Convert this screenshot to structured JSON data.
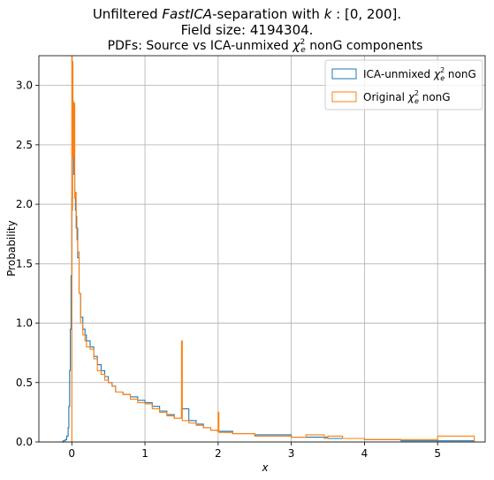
{
  "figure": {
    "suptitle_line1_a": "Unfiltered ",
    "suptitle_line1_b": "FastICA",
    "suptitle_line1_c": "-separation with ",
    "suptitle_line1_d": "k",
    "suptitle_line1_e": " : [0, 200].",
    "suptitle_line2": "Field size: 4194304."
  },
  "chart_data": {
    "type": "line",
    "title_a": "PDFs: Source vs ICA-unmixed ",
    "title_chi": "χ",
    "title_sup": "2",
    "title_sub": "e",
    "title_b": " nonG components",
    "xlabel": "x",
    "ylabel": "Probability",
    "xlim": [
      -0.45,
      5.65
    ],
    "ylim": [
      0,
      3.25
    ],
    "xticks": [
      0,
      1,
      2,
      3,
      4,
      5
    ],
    "yticks": [
      0.0,
      0.5,
      1.0,
      1.5,
      2.0,
      2.5,
      3.0
    ],
    "grid": true,
    "legend_position": "top-right",
    "series": [
      {
        "name_a": "ICA-unmixed ",
        "name_b": " nonG",
        "color": "#1f77b4",
        "style": "step",
        "x": [
          -0.15,
          -0.12,
          -0.09,
          -0.07,
          -0.05,
          -0.04,
          -0.03,
          -0.02,
          -0.01,
          0.0,
          0.01,
          0.02,
          0.03,
          0.04,
          0.05,
          0.06,
          0.08,
          0.1,
          0.12,
          0.15,
          0.18,
          0.2,
          0.25,
          0.3,
          0.35,
          0.4,
          0.45,
          0.5,
          0.55,
          0.6,
          0.7,
          0.8,
          0.9,
          1.0,
          1.1,
          1.2,
          1.3,
          1.4,
          1.5,
          1.6,
          1.7,
          1.8,
          1.9,
          2.0,
          2.2,
          2.5,
          3.0,
          3.5,
          4.0,
          4.5,
          5.0,
          5.3,
          5.5
        ],
        "y": [
          0.0,
          0.01,
          0.02,
          0.05,
          0.12,
          0.3,
          0.6,
          0.95,
          1.4,
          2.05,
          2.87,
          2.6,
          2.25,
          2.05,
          1.95,
          1.8,
          1.55,
          1.25,
          1.05,
          0.95,
          0.9,
          0.85,
          0.8,
          0.72,
          0.65,
          0.6,
          0.55,
          0.5,
          0.47,
          0.42,
          0.4,
          0.38,
          0.35,
          0.33,
          0.3,
          0.26,
          0.23,
          0.2,
          0.28,
          0.18,
          0.15,
          0.12,
          0.1,
          0.09,
          0.07,
          0.06,
          0.04,
          0.03,
          0.02,
          0.01,
          0.01,
          0.01,
          0.0
        ]
      },
      {
        "name_a": "Original ",
        "name_b": " nonG",
        "color": "#ff7f0e",
        "style": "step",
        "x": [
          0.0,
          0.005,
          0.01,
          0.015,
          0.02,
          0.03,
          0.04,
          0.05,
          0.06,
          0.07,
          0.08,
          0.1,
          0.12,
          0.15,
          0.18,
          0.2,
          0.25,
          0.3,
          0.35,
          0.4,
          0.45,
          0.5,
          0.55,
          0.6,
          0.7,
          0.8,
          0.9,
          1.0,
          1.1,
          1.2,
          1.3,
          1.4,
          1.49,
          1.5,
          1.51,
          1.6,
          1.7,
          1.8,
          1.9,
          1.99,
          2.0,
          2.01,
          2.2,
          2.5,
          3.0,
          3.2,
          3.45,
          3.5,
          3.7,
          4.0,
          4.5,
          4.95,
          5.0,
          5.5
        ],
        "y": [
          3.25,
          1.95,
          3.2,
          2.6,
          2.4,
          2.85,
          2.05,
          2.1,
          1.9,
          1.7,
          1.6,
          1.25,
          1.0,
          0.9,
          0.85,
          0.8,
          0.78,
          0.7,
          0.6,
          0.57,
          0.52,
          0.5,
          0.47,
          0.42,
          0.4,
          0.36,
          0.33,
          0.32,
          0.28,
          0.25,
          0.22,
          0.2,
          0.2,
          0.85,
          0.18,
          0.16,
          0.14,
          0.12,
          0.1,
          0.09,
          0.25,
          0.08,
          0.07,
          0.05,
          0.04,
          0.06,
          0.03,
          0.05,
          0.03,
          0.02,
          0.02,
          0.02,
          0.05,
          0.01
        ]
      }
    ]
  }
}
